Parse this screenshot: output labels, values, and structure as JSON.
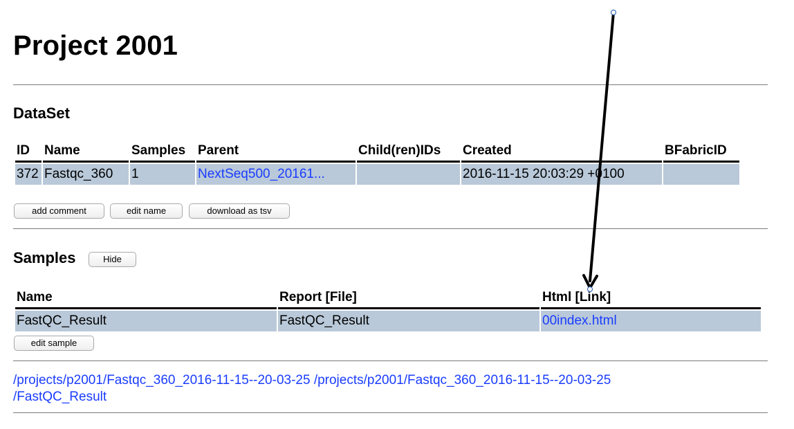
{
  "project": {
    "title": "Project 2001"
  },
  "dataset": {
    "heading": "DataSet",
    "columns": [
      "ID",
      "Name",
      "Samples",
      "Parent",
      "Child(ren)IDs",
      "Created",
      "BFabricID"
    ],
    "row": {
      "id": "372",
      "name": "Fastqc_360",
      "samples": "1",
      "parent": "NextSeq500_20161...",
      "children": "",
      "created": "2016-11-15 20:03:29 +0100",
      "bfabric_id": ""
    },
    "buttons": {
      "add_comment": "add comment",
      "edit_name": "edit name",
      "download_tsv": "download as tsv"
    }
  },
  "samples": {
    "heading": "Samples",
    "hide_button": "Hide",
    "columns": [
      "Name",
      "Report [File]",
      "Html [Link]"
    ],
    "row": {
      "name": "FastQC_Result",
      "report": "FastQC_Result",
      "html": "00index.html"
    },
    "edit_button": "edit sample"
  },
  "paths": {
    "line1": "/projects/p2001/Fastqc_360_2016-11-15--20-03-25 /projects/p2001/Fastqc_360_2016-11-15--20-03-25",
    "line2": "/FastQC_Result"
  },
  "colors": {
    "row_bg": "#b9c9d9",
    "link": "#1a3cff",
    "annotation_arrow": "#000000"
  }
}
